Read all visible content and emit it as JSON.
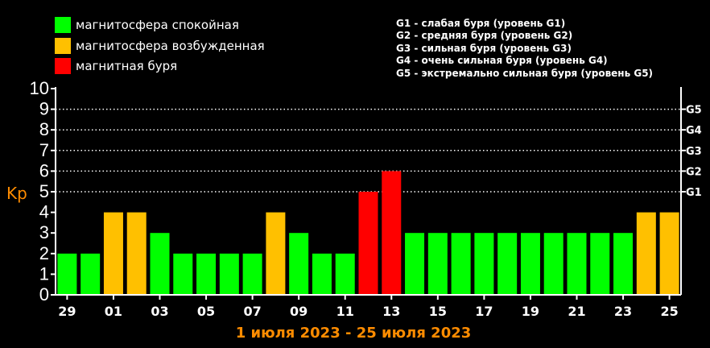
{
  "legend": {
    "items": [
      {
        "label": "магнитосфера спокойная",
        "color": "#00ff00"
      },
      {
        "label": "магнитосфера возбужденная",
        "color": "#ffc000"
      },
      {
        "label": "магнитная буря",
        "color": "#ff0000"
      }
    ]
  },
  "storm_levels": [
    "G1 - слабая буря (уровень G1)",
    "G2 - средняя буря (уровень G2)",
    "G3 - сильная буря (уровень G3)",
    "G4 - очень сильная буря (уровень G4)",
    "G5 - экстремально сильная буря (уровень G5)"
  ],
  "chart_data": {
    "type": "bar",
    "ylabel": "Kp",
    "xlabel": "1 июля 2023 - 25 июля 2023",
    "ylim": [
      0,
      10
    ],
    "yticks": [
      "0",
      "1",
      "2",
      "3",
      "4",
      "5",
      "6",
      "7",
      "8",
      "9",
      "10"
    ],
    "right_ticks": [
      {
        "label": "G1",
        "value": 5
      },
      {
        "label": "G2",
        "value": 6
      },
      {
        "label": "G3",
        "value": 7
      },
      {
        "label": "G4",
        "value": 8
      },
      {
        "label": "G5",
        "value": 9
      }
    ],
    "grid_lines": [
      5,
      6,
      7,
      8,
      9
    ],
    "tick_labels": [
      "29",
      "01",
      "03",
      "05",
      "07",
      "09",
      "11",
      "13",
      "15",
      "17",
      "19",
      "21",
      "23",
      "25"
    ],
    "values": [
      2,
      2,
      4,
      4,
      3,
      2,
      2,
      2,
      2,
      4,
      3,
      2,
      2,
      5,
      6,
      3,
      3,
      3,
      3,
      3,
      3,
      3,
      3,
      3,
      3,
      4,
      4
    ],
    "colors": {
      "quiet": "#00ff00",
      "active": "#ffc000",
      "storm": "#ff0000"
    }
  },
  "colors": {
    "kp_label": "#ff8c00",
    "date_range": "#ff8c00",
    "axis": "#ffffff",
    "background": "#000000"
  }
}
